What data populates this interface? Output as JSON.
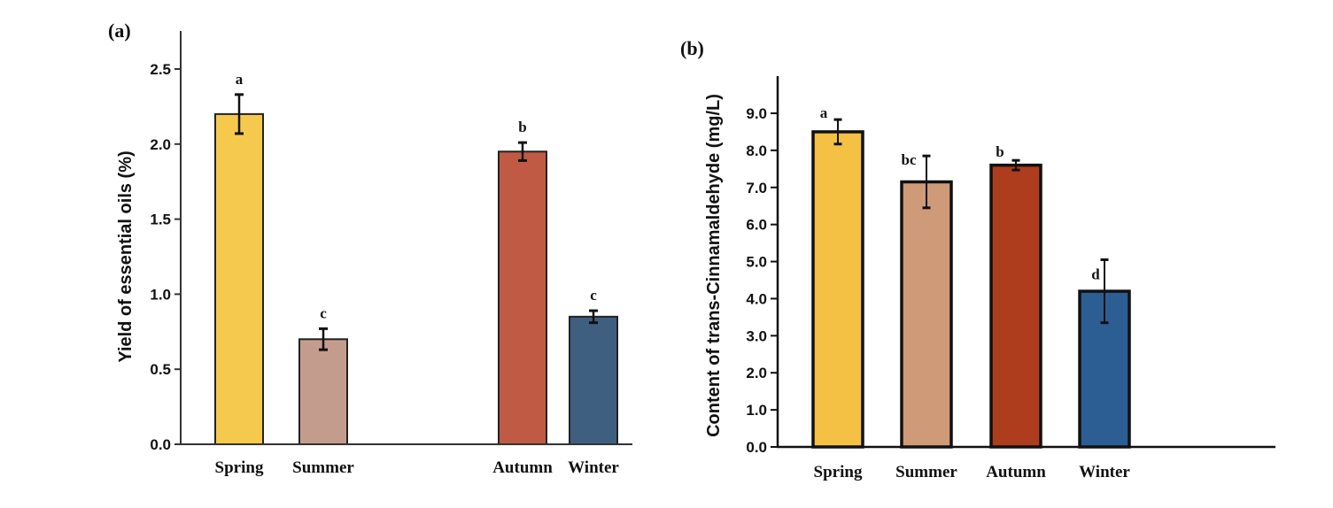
{
  "chart_data": [
    {
      "type": "bar",
      "panel_label": "(a)",
      "title": "",
      "xlabel": "",
      "ylabel": "Yield of essential oils (%)",
      "ylim": [
        0,
        2.75
      ],
      "yticks": [
        0.0,
        0.5,
        1.0,
        1.5,
        2.0,
        2.5
      ],
      "ytick_labels": [
        "0.0",
        "0.5",
        "1.0",
        "1.5",
        "2.0",
        "2.5"
      ],
      "grid": false,
      "categories": [
        "Spring",
        "Summer",
        "Autumn",
        "Winter"
      ],
      "values": [
        2.2,
        0.7,
        1.95,
        0.85
      ],
      "errors": [
        0.13,
        0.07,
        0.06,
        0.04
      ],
      "significance_letters": [
        "a",
        "c",
        "b",
        "c"
      ],
      "colors": [
        "#f4c94e",
        "#c49c8e",
        "#c05a44",
        "#3e5f80"
      ]
    },
    {
      "type": "bar",
      "panel_label": "(b)",
      "title": "",
      "xlabel": "",
      "ylabel": "Content of trans-Cinnamaldehyde (mg/L)",
      "ylim": [
        0,
        10.0
      ],
      "yticks": [
        0.0,
        1.0,
        2.0,
        3.0,
        4.0,
        5.0,
        6.0,
        7.0,
        8.0,
        9.0
      ],
      "ytick_labels": [
        "0.0",
        "1.0",
        "2.0",
        "3.0",
        "4.0",
        "5.0",
        "6.0",
        "7.0",
        "8.0",
        "9.0"
      ],
      "grid": false,
      "categories": [
        "Spring",
        "Summer",
        "Autumn",
        "Winter"
      ],
      "values": [
        8.5,
        7.15,
        7.6,
        4.2
      ],
      "errors": [
        0.33,
        0.7,
        0.13,
        0.85
      ],
      "significance_letters": [
        "a",
        "bc",
        "b",
        "d"
      ],
      "colors": [
        "#f4c144",
        "#cf9a78",
        "#ad3d1c",
        "#2c5e93"
      ]
    }
  ]
}
